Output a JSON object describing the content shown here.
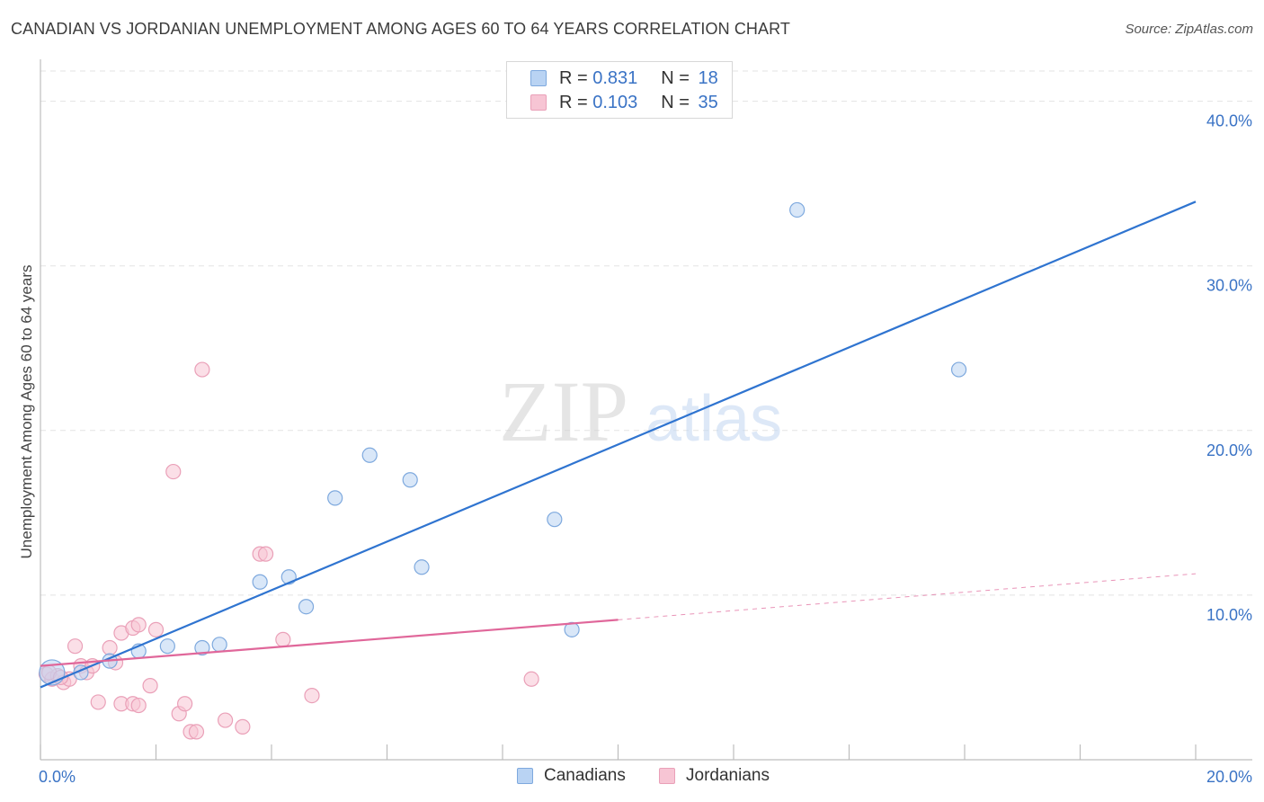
{
  "title": "CANADIAN VS JORDANIAN UNEMPLOYMENT AMONG AGES 60 TO 64 YEARS CORRELATION CHART",
  "source": "Source: ZipAtlas.com",
  "watermark": {
    "zip": "ZIP",
    "atlas": "atlas"
  },
  "colors": {
    "canadians_fill": "#b9d3f3",
    "canadians_stroke": "#7ea9de",
    "canadians_line": "#2f74d0",
    "jordanians_fill": "#f7c5d4",
    "jordanians_stroke": "#eaa0b8",
    "jordanians_line": "#e0679a",
    "axis_text": "#3a73c5",
    "grid": "#e3e3e3"
  },
  "legend_top": {
    "rows": [
      {
        "r_label": "R = ",
        "r_value": "0.831",
        "n_label": "N = ",
        "n_value": "18"
      },
      {
        "r_label": "R = ",
        "r_value": "0.103",
        "n_label": "N = ",
        "n_value": "35"
      }
    ]
  },
  "legend_bottom": {
    "canadians": "Canadians",
    "jordanians": "Jordanians"
  },
  "chart_data": {
    "type": "scatter",
    "title": "CANADIAN VS JORDANIAN UNEMPLOYMENT AMONG AGES 60 TO 64 YEARS CORRELATION CHART",
    "xlabel": "",
    "ylabel": "Unemployment Among Ages 60 to 64 years",
    "xlim": [
      0,
      20
    ],
    "ylim": [
      0,
      42
    ],
    "x_tick_labels": [
      {
        "value": 0,
        "label": "0.0%"
      },
      {
        "value": 20,
        "label": "20.0%"
      }
    ],
    "y_tick_labels": [
      {
        "value": 10,
        "label": "10.0%"
      },
      {
        "value": 20,
        "label": "20.0%"
      },
      {
        "value": 30,
        "label": "30.0%"
      },
      {
        "value": 40,
        "label": "40.0%"
      }
    ],
    "x_minor_ticks": [
      0,
      2,
      4,
      6,
      8,
      10,
      12,
      14,
      16,
      18,
      20
    ],
    "series": [
      {
        "name": "Canadians",
        "r": 0.831,
        "n": 18,
        "points": [
          {
            "x": 0.2,
            "y": 5.3
          },
          {
            "x": 0.7,
            "y": 5.3
          },
          {
            "x": 1.2,
            "y": 6.0
          },
          {
            "x": 1.7,
            "y": 6.6
          },
          {
            "x": 2.2,
            "y": 6.9
          },
          {
            "x": 2.8,
            "y": 6.8
          },
          {
            "x": 3.1,
            "y": 7.0
          },
          {
            "x": 3.8,
            "y": 10.8
          },
          {
            "x": 4.3,
            "y": 11.1
          },
          {
            "x": 4.6,
            "y": 9.3
          },
          {
            "x": 5.1,
            "y": 15.9
          },
          {
            "x": 5.7,
            "y": 18.5
          },
          {
            "x": 6.4,
            "y": 17.0
          },
          {
            "x": 6.6,
            "y": 11.7
          },
          {
            "x": 8.9,
            "y": 14.6
          },
          {
            "x": 9.2,
            "y": 7.9
          },
          {
            "x": 13.1,
            "y": 33.4
          },
          {
            "x": 15.9,
            "y": 23.7
          }
        ],
        "trend": {
          "x0": 0.0,
          "y0": 4.4,
          "x1": 20.0,
          "y1": 33.9,
          "dashed_from": null
        }
      },
      {
        "name": "Jordanians",
        "r": 0.103,
        "n": 35,
        "points": [
          {
            "x": 0.1,
            "y": 5.2
          },
          {
            "x": 0.2,
            "y": 4.9
          },
          {
            "x": 0.3,
            "y": 5.1
          },
          {
            "x": 0.4,
            "y": 4.7
          },
          {
            "x": 0.5,
            "y": 4.9
          },
          {
            "x": 0.6,
            "y": 6.9
          },
          {
            "x": 0.7,
            "y": 5.7
          },
          {
            "x": 0.8,
            "y": 5.3
          },
          {
            "x": 0.9,
            "y": 5.7
          },
          {
            "x": 1.0,
            "y": 3.5
          },
          {
            "x": 1.2,
            "y": 6.8
          },
          {
            "x": 1.3,
            "y": 5.9
          },
          {
            "x": 1.4,
            "y": 3.4
          },
          {
            "x": 1.4,
            "y": 7.7
          },
          {
            "x": 1.6,
            "y": 3.4
          },
          {
            "x": 1.6,
            "y": 8.0
          },
          {
            "x": 1.7,
            "y": 3.3
          },
          {
            "x": 1.7,
            "y": 8.2
          },
          {
            "x": 1.9,
            "y": 4.5
          },
          {
            "x": 2.0,
            "y": 7.9
          },
          {
            "x": 2.3,
            "y": 17.5
          },
          {
            "x": 2.4,
            "y": 2.8
          },
          {
            "x": 2.5,
            "y": 3.4
          },
          {
            "x": 2.6,
            "y": 1.7
          },
          {
            "x": 2.7,
            "y": 1.7
          },
          {
            "x": 2.8,
            "y": 23.7
          },
          {
            "x": 3.2,
            "y": 2.4
          },
          {
            "x": 3.5,
            "y": 2.0
          },
          {
            "x": 3.8,
            "y": 12.5
          },
          {
            "x": 3.9,
            "y": 12.5
          },
          {
            "x": 4.2,
            "y": 7.3
          },
          {
            "x": 4.7,
            "y": 3.9
          },
          {
            "x": 8.5,
            "y": 4.9
          },
          {
            "x": 0.15,
            "y": 5.3
          },
          {
            "x": 0.35,
            "y": 5.0
          }
        ],
        "trend": {
          "x0": 0.0,
          "y0": 5.7,
          "x1": 20.0,
          "y1": 11.3,
          "dashed_from": 10.0
        }
      }
    ]
  }
}
